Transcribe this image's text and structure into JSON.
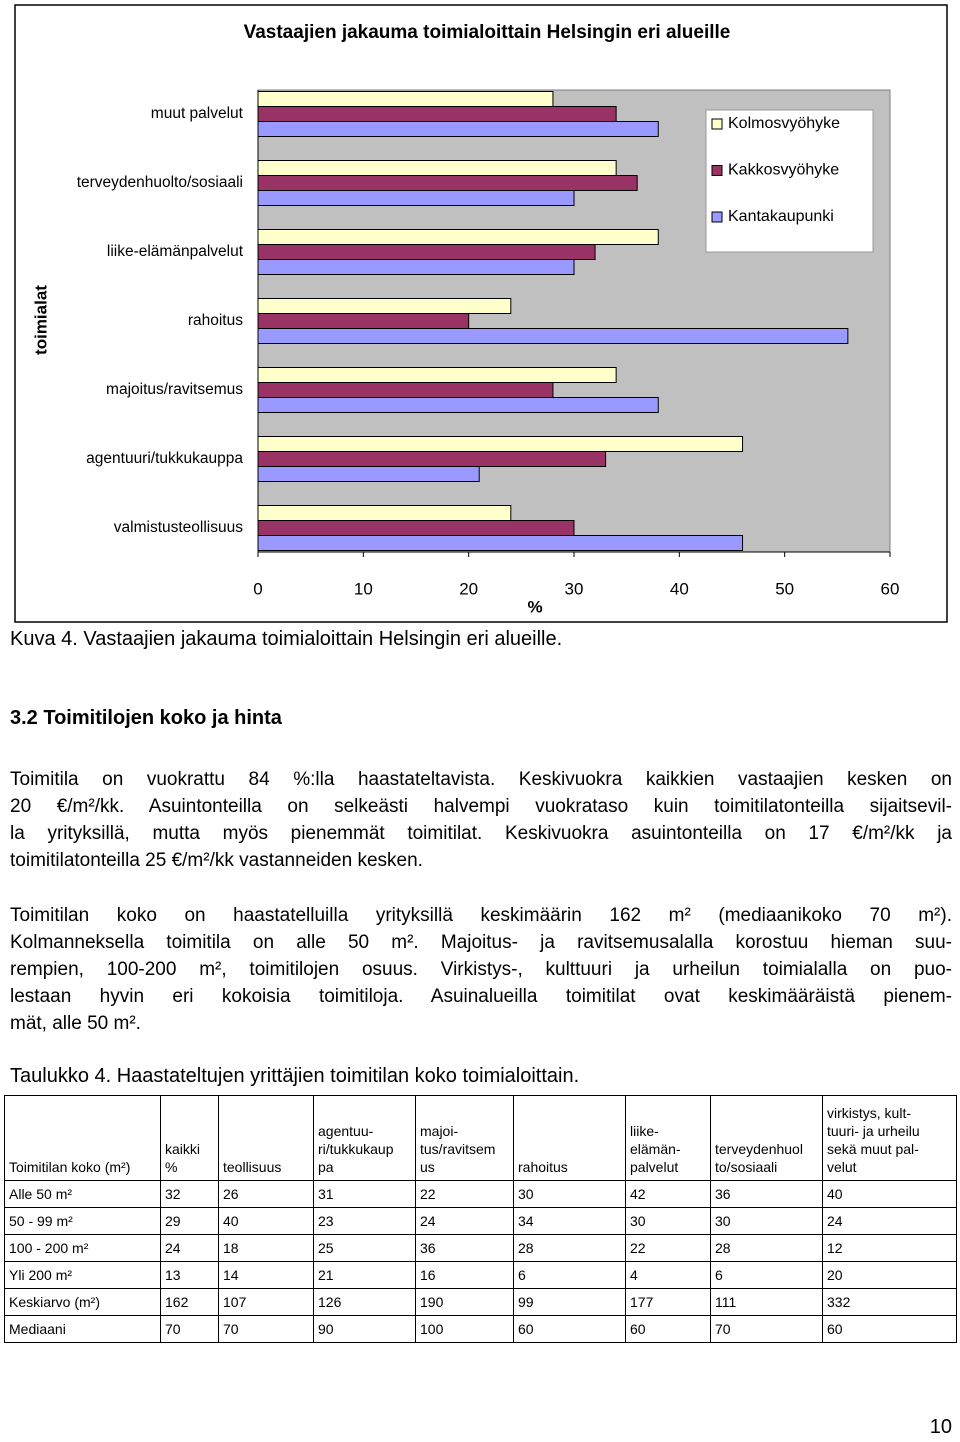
{
  "chart_data": {
    "type": "bar",
    "orientation": "horizontal",
    "title": "Vastaajien jakauma toimialoittain Helsingin eri alueille",
    "xlabel": "%",
    "ylabel": "toimialat",
    "categories": [
      "muut palvelut",
      "terveydenhuolto/sosiaali",
      "liike-elämänpalvelut",
      "rahoitus",
      "majoitus/ravitsemus",
      "agentuuri/tukkukauppa",
      "valmistusteollisuus"
    ],
    "series": [
      {
        "name": "Kolmosvyöhyke",
        "color": "#ffffcc",
        "values": [
          28,
          34,
          38,
          24,
          34,
          46,
          24
        ]
      },
      {
        "name": "Kakkosvyöhyke",
        "color": "#993366",
        "values": [
          34,
          36,
          32,
          20,
          28,
          33,
          30
        ]
      },
      {
        "name": "Kantakaupunki",
        "color": "#9999ff",
        "values": [
          38,
          30,
          30,
          56,
          38,
          21,
          46
        ]
      }
    ],
    "xlim": [
      0,
      60
    ],
    "xticks": [
      0,
      10,
      20,
      30,
      40,
      50,
      60
    ],
    "legend": "upper right"
  },
  "caption": "Kuva 4. Vastaajien jakauma toimialoittain Helsingin eri alueille.",
  "heading": "3.2 Toimitilojen koko ja hinta",
  "paragraphs": [
    {
      "lines": [
        "Toimitila on vuokrattu 84 %:lla haastateltavista. Keskivuokra kaikkien vastaajien kesken on",
        "20 €/m²/kk. Asuintonteilla on selkeästi halvempi vuokrataso kuin toimitilatonteilla sijaitsevil-",
        "la yrityksillä, mutta myös pienemmät toimitilat. Keskivuokra asuintonteilla on 17 €/m²/kk ja",
        "toimitilatonteilla 25 €/m²/kk vastanneiden kesken."
      ]
    },
    {
      "lines": [
        "Toimitilan koko on haastatelluilla yrityksillä keskimäärin 162 m² (mediaanikoko 70 m²).",
        "Kolmanneksella toimitila on alle 50 m². Majoitus- ja ravitsemusalalla korostuu hieman suu-",
        "rempien, 100-200 m², toimitilojen osuus. Virkistys-, kulttuuri ja urheilun toimialalla on puo-",
        "lestaan hyvin eri kokoisia toimitiloja. Asuinalueilla toimitilat ovat keskimääräistä pienem-",
        "mät, alle 50 m²."
      ]
    }
  ],
  "table": {
    "caption": "Taulukko 4. Haastateltujen yrittäjien toimitilan koko toimialoittain.",
    "header": [
      "Toimitilan koko (m²)",
      "kaikki\n%",
      "teollisuus",
      "agentuu-\nri/tukkukaup\npa",
      "majoi-\ntus/ravitsem\nus",
      "rahoitus",
      "liike-\nelämän-\npalvelut",
      "terveydenhuol\nto/sosiaali",
      "virkistys, kult-\ntuuri- ja urheilu\nsekä muut pal-\nvelut"
    ],
    "rows": [
      [
        "Alle 50 m²",
        32,
        26,
        31,
        22,
        30,
        42,
        36,
        40
      ],
      [
        "50 - 99 m²",
        29,
        40,
        23,
        24,
        34,
        30,
        30,
        24
      ],
      [
        "100 - 200 m²",
        24,
        18,
        25,
        36,
        28,
        22,
        28,
        12
      ],
      [
        "Yli 200 m²",
        13,
        14,
        21,
        16,
        6,
        4,
        6,
        20
      ],
      [
        "Keskiarvo (m²)",
        162,
        107,
        126,
        190,
        99,
        177,
        111,
        332
      ],
      [
        "Mediaani",
        70,
        70,
        90,
        100,
        60,
        60,
        70,
        60
      ]
    ]
  },
  "page_number": "10"
}
